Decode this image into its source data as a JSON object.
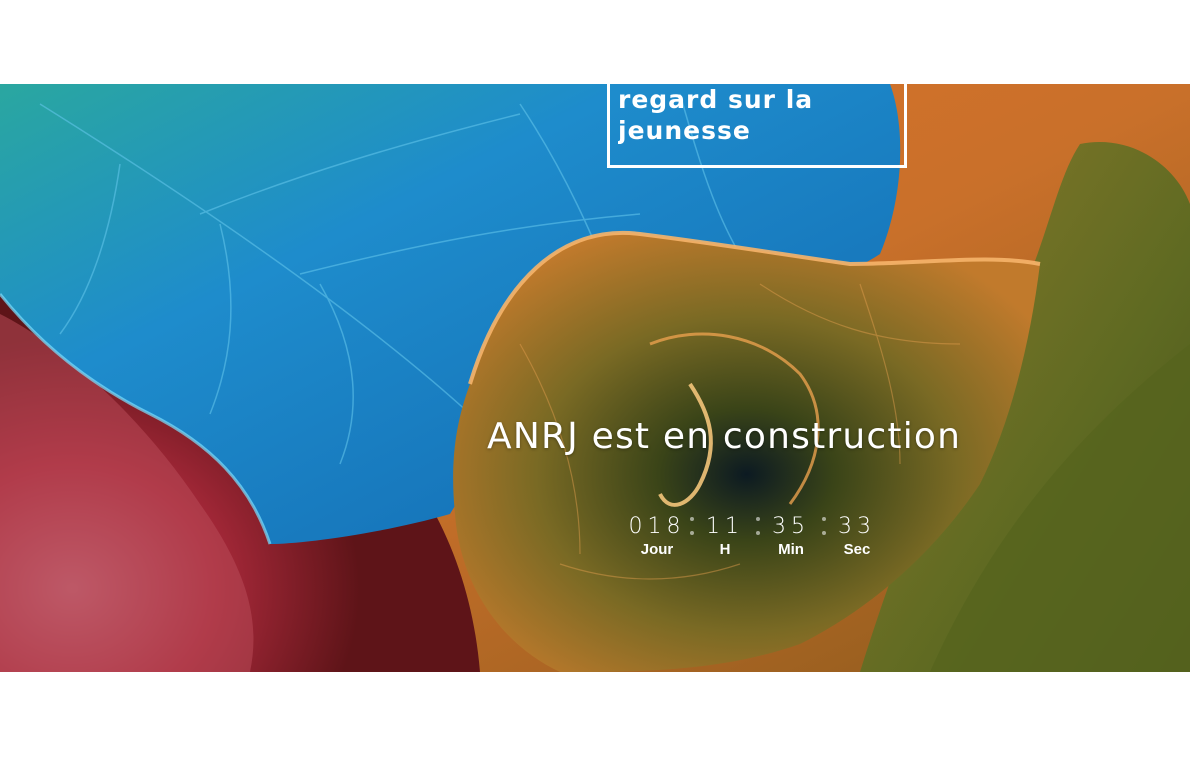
{
  "site": {
    "tagline_line1": "regard sur la",
    "tagline_line2": "jeunesse"
  },
  "hero": {
    "headline": "ANRJ est en construction"
  },
  "countdown": {
    "units": [
      {
        "value": "018",
        "label": "Jour"
      },
      {
        "value": "11",
        "label": "H"
      },
      {
        "value": "35",
        "label": "Min"
      },
      {
        "value": "33",
        "label": "Sec"
      }
    ]
  },
  "colors": {
    "page_background": "#ffffff",
    "text": "#ffffff",
    "leaf_blue": "#1f86c4",
    "leaf_orange": "#d9822b",
    "leaf_green": "#5f6a22",
    "background_red": "#a8293a"
  },
  "icons": [
    "countdown-separator-icon"
  ]
}
